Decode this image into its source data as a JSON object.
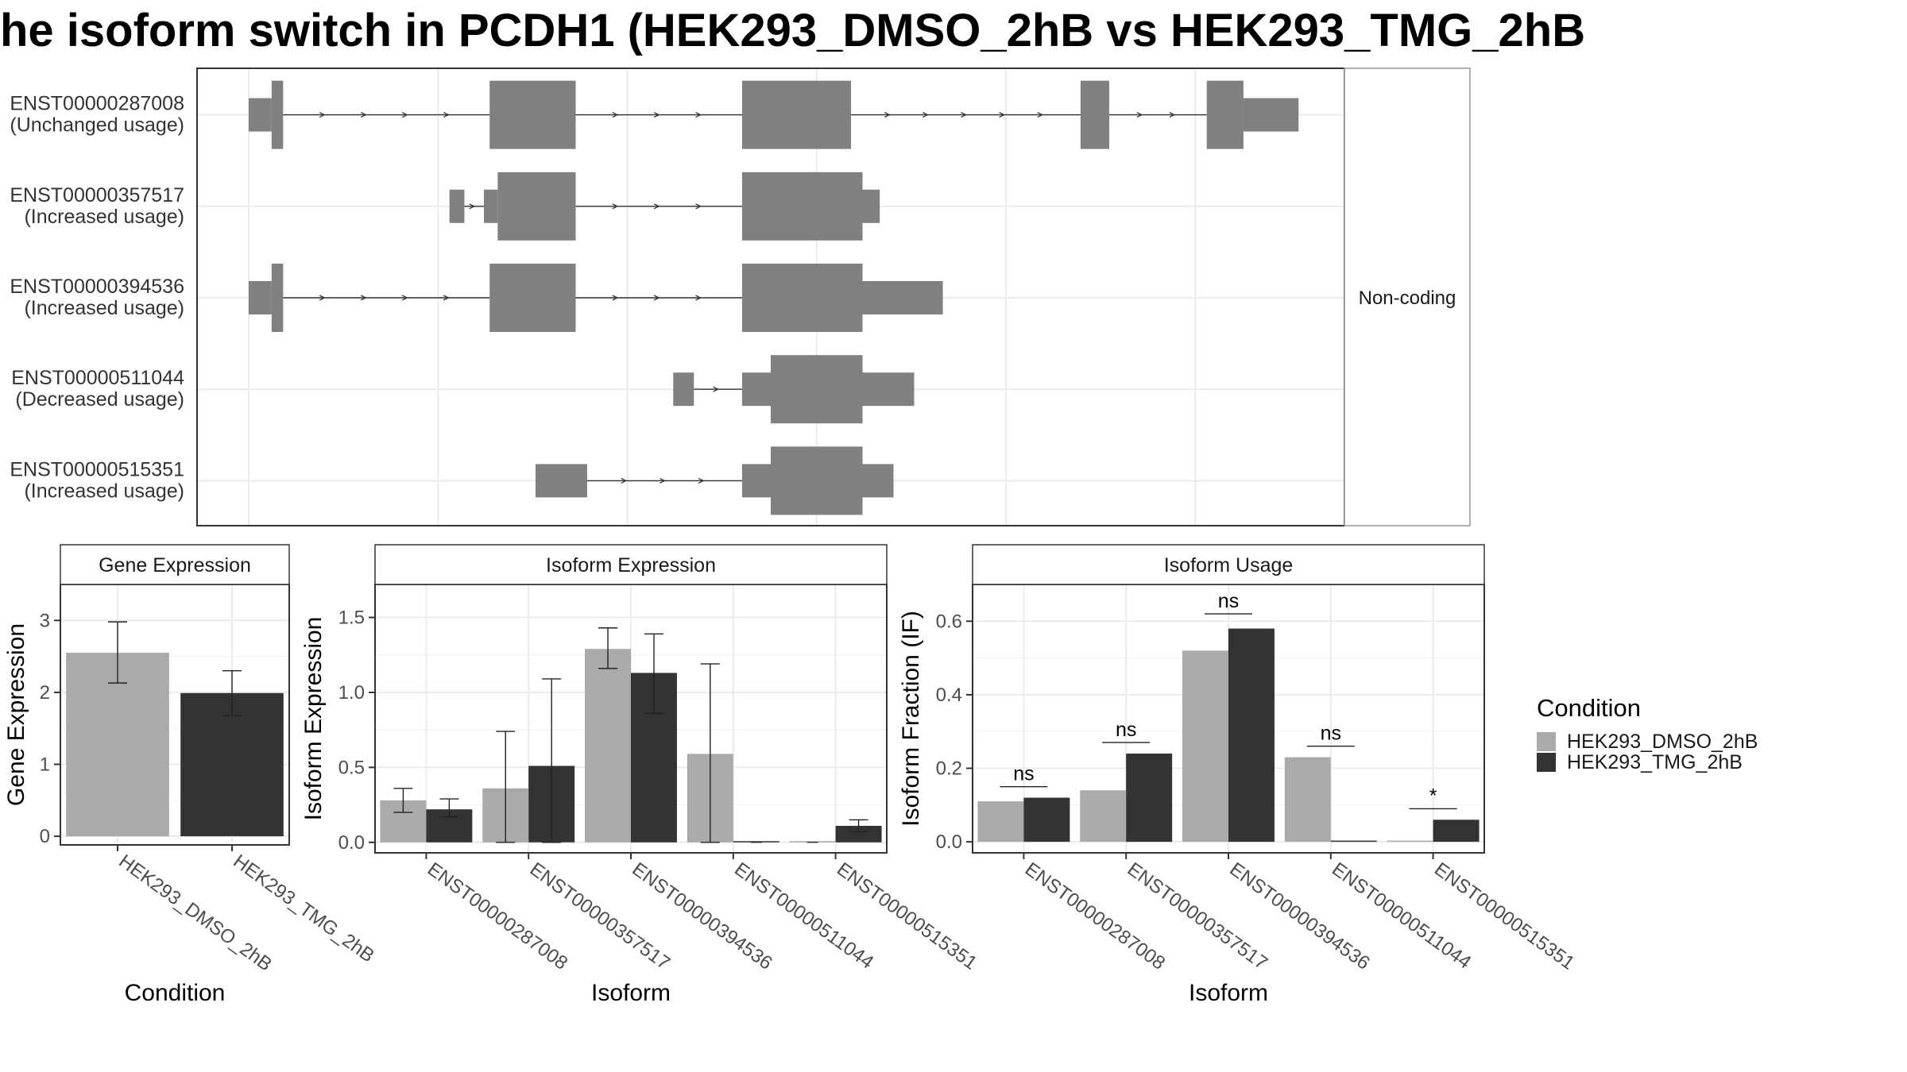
{
  "title": "he isoform switch in PCDH1 (HEK293_DMSO_2hB vs HEK293_TMG_2hB",
  "colors": {
    "DMSO": "#aaaaaa",
    "TMG": "#333333",
    "structure": "#808080"
  },
  "transcript_panel": {
    "facet_label": "Non-coding",
    "rows": [
      {
        "id": "ENST00000287008",
        "usage": "(Unchanged usage)",
        "blocks": [
          [
            0.045,
            0.065,
            "n"
          ],
          [
            0.065,
            0.075,
            "w"
          ],
          [
            0.255,
            0.33,
            "w"
          ],
          [
            0.475,
            0.57,
            "w"
          ],
          [
            0.77,
            0.795,
            "w"
          ],
          [
            0.88,
            0.912,
            "w"
          ],
          [
            0.912,
            0.96,
            "n"
          ]
        ],
        "introls": [
          [
            0.075,
            0.255
          ],
          [
            0.33,
            0.475
          ],
          [
            0.57,
            0.77
          ],
          [
            0.795,
            0.88
          ]
        ]
      },
      {
        "id": "ENST00000357517",
        "usage": "(Increased usage)",
        "blocks": [
          [
            0.22,
            0.233,
            "n"
          ],
          [
            0.25,
            0.262,
            "n"
          ],
          [
            0.262,
            0.33,
            "w"
          ],
          [
            0.475,
            0.58,
            "w"
          ],
          [
            0.58,
            0.595,
            "n"
          ]
        ],
        "introls": [
          [
            0.233,
            0.25
          ],
          [
            0.33,
            0.475
          ]
        ]
      },
      {
        "id": "ENST00000394536",
        "usage": "(Increased usage)",
        "blocks": [
          [
            0.045,
            0.065,
            "n"
          ],
          [
            0.065,
            0.075,
            "w"
          ],
          [
            0.255,
            0.33,
            "w"
          ],
          [
            0.475,
            0.58,
            "w"
          ],
          [
            0.58,
            0.65,
            "n"
          ]
        ],
        "introls": [
          [
            0.075,
            0.255
          ],
          [
            0.33,
            0.475
          ]
        ]
      },
      {
        "id": "ENST00000511044",
        "usage": "(Decreased usage)",
        "blocks": [
          [
            0.415,
            0.433,
            "n"
          ],
          [
            0.475,
            0.5,
            "n"
          ],
          [
            0.5,
            0.58,
            "w"
          ],
          [
            0.58,
            0.625,
            "n"
          ]
        ],
        "introls": [
          [
            0.433,
            0.475
          ]
        ]
      },
      {
        "id": "ENST00000515351",
        "usage": "(Increased usage)",
        "blocks": [
          [
            0.295,
            0.34,
            "n"
          ],
          [
            0.475,
            0.5,
            "n"
          ],
          [
            0.5,
            0.58,
            "w"
          ],
          [
            0.58,
            0.607,
            "n"
          ]
        ],
        "introls": [
          [
            0.34,
            0.475
          ]
        ]
      }
    ]
  },
  "chart_data": [
    {
      "type": "bar",
      "title": "Gene Expression",
      "xlabel": "Condition",
      "ylabel": "Gene Expression",
      "ylim": [
        -0.12,
        3.5
      ],
      "yticks": [
        0,
        1,
        2,
        3
      ],
      "categories": [
        "HEK293_DMSO_2hB",
        "HEK293_TMG_2hB"
      ],
      "series": [
        {
          "values": [
            2.55,
            1.99
          ],
          "err_low": [
            2.13,
            1.68
          ],
          "err_high": [
            2.98,
            2.3
          ]
        }
      ]
    },
    {
      "type": "bar",
      "title": "Isoform Expression",
      "xlabel": "Isoform",
      "ylabel": "Isoform Expression",
      "ylim": [
        -0.07,
        1.72
      ],
      "yticks": [
        0.0,
        0.5,
        1.0,
        1.5
      ],
      "categories": [
        "ENST00000287008",
        "ENST00000357517",
        "ENST00000394536",
        "ENST00000511044",
        "ENST00000515351"
      ],
      "series": [
        {
          "name": "HEK293_DMSO_2hB",
          "values": [
            0.28,
            0.36,
            1.29,
            0.59,
            0.0
          ],
          "err_low": [
            0.2,
            0.0,
            1.16,
            0.0,
            0.0
          ],
          "err_high": [
            0.36,
            0.74,
            1.43,
            1.19,
            0.0
          ]
        },
        {
          "name": "HEK293_TMG_2hB",
          "values": [
            0.22,
            0.51,
            1.13,
            0.0,
            0.11
          ],
          "err_low": [
            0.17,
            0.0,
            0.86,
            0.0,
            0.07
          ],
          "err_high": [
            0.29,
            1.09,
            1.39,
            0.0,
            0.15
          ]
        }
      ]
    },
    {
      "type": "bar",
      "title": "Isoform Usage",
      "xlabel": "Isoform",
      "ylabel": "Isoform Fraction (IF)",
      "ylim": [
        -0.03,
        0.7
      ],
      "yticks": [
        0.0,
        0.2,
        0.4,
        0.6
      ],
      "categories": [
        "ENST00000287008",
        "ENST00000357517",
        "ENST00000394536",
        "ENST00000511044",
        "ENST00000515351"
      ],
      "series": [
        {
          "name": "HEK293_DMSO_2hB",
          "values": [
            0.11,
            0.14,
            0.52,
            0.23,
            0.0
          ]
        },
        {
          "name": "HEK293_TMG_2hB",
          "values": [
            0.12,
            0.24,
            0.58,
            0.0,
            0.06
          ]
        }
      ],
      "significance": [
        {
          "label": "ns",
          "y": 0.15
        },
        {
          "label": "ns",
          "y": 0.27
        },
        {
          "label": "ns",
          "y": 0.62
        },
        {
          "label": "ns",
          "y": 0.26
        },
        {
          "label": "*",
          "y": 0.09
        }
      ]
    }
  ],
  "legend": {
    "title": "Condition",
    "items": [
      "HEK293_DMSO_2hB",
      "HEK293_TMG_2hB"
    ]
  }
}
